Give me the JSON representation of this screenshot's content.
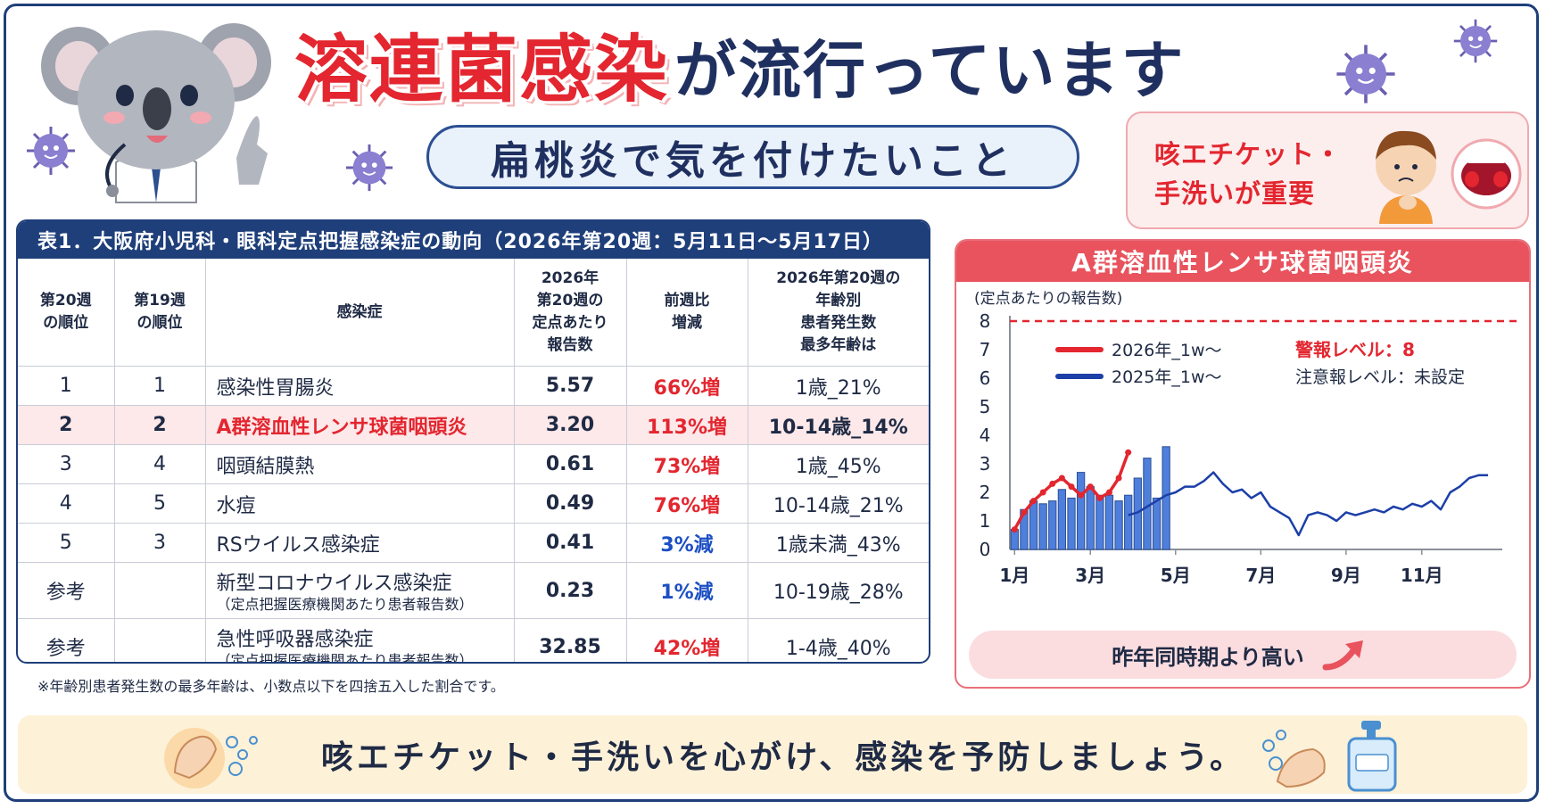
{
  "header": {
    "title_red": "溶連菌感染",
    "title_rest": "が流行っています",
    "subtitle": "扁桃炎で気を付けたいこと"
  },
  "etiquette": {
    "line1": "咳エチケット・",
    "line2": "手洗いが重要"
  },
  "table": {
    "title": "表1．大阪府小児科・眼科定点把握感染症の動向（2026年第20週：5月11日〜5月17日）",
    "headers": {
      "rank20_1": "第20週",
      "rank20_2": "の順位",
      "rank19_1": "第19週",
      "rank19_2": "の順位",
      "disease": "感染症",
      "rate_1": "2026年",
      "rate_2": "第20週の",
      "rate_3": "定点あたり",
      "rate_4": "報告数",
      "change_1": "前週比",
      "change_2": "増減",
      "age_1": "2026年第20週の",
      "age_2": "年齢別",
      "age_3": "患者発生数",
      "age_4": "最多年齢は"
    },
    "rows": [
      {
        "r20": "1",
        "r19": "1",
        "name": "感染性胃腸炎",
        "rate": "5.57",
        "change": "66%増",
        "age": "1歳_21%"
      },
      {
        "r20": "2",
        "r19": "2",
        "name": "A群溶血性レンサ球菌咽頭炎",
        "rate": "3.20",
        "change": "113%増",
        "age": "10-14歳_14%"
      },
      {
        "r20": "3",
        "r19": "4",
        "name": "咽頭結膜熱",
        "rate": "0.61",
        "change": "73%増",
        "age": "1歳_45%"
      },
      {
        "r20": "4",
        "r19": "5",
        "name": "水痘",
        "rate": "0.49",
        "change": "76%増",
        "age": "10-14歳_21%"
      },
      {
        "r20": "5",
        "r19": "3",
        "name": "RSウイルス感染症",
        "rate": "0.41",
        "change": "3%減",
        "age": "1歳未満_43%"
      },
      {
        "r20": "参考",
        "r19": "",
        "name": "新型コロナウイルス感染症",
        "sub": "（定点把握医療機関あたり患者報告数）",
        "rate": "0.23",
        "change": "1%減",
        "age": "10-19歳_28%"
      },
      {
        "r20": "参考",
        "r19": "",
        "name": "急性呼吸器感染症",
        "sub": "（定点把握医療機関あたり患者報告数）",
        "rate": "32.85",
        "change": "42%増",
        "age": "1-4歳_40%"
      }
    ],
    "note": "※年齢別患者発生数の最多年齢は、小数点以下を四捨五入した割合です。"
  },
  "chart_panel": {
    "title": "A群溶血性レンサ球菌咽頭炎",
    "trend_text": "昨年同時期より高い"
  },
  "chart_data": {
    "type": "line",
    "ylabel": "(定点あたりの報告数)",
    "ylim": [
      0,
      8
    ],
    "yticks": [
      "0",
      "1",
      "2",
      "3",
      "4",
      "5",
      "6",
      "7",
      "8"
    ],
    "xtick_labels": [
      "1月",
      "3月",
      "5月",
      "7月",
      "9月",
      "11月"
    ],
    "xtick_weeks": [
      1,
      9,
      18,
      27,
      36,
      44
    ],
    "alert_level_label": "警報レベル：8",
    "alert_level": 8,
    "caution_level_label": "注意報レベル：未設定",
    "series": [
      {
        "name": "2026年_1w〜",
        "color": "#e3262f",
        "week_start": 1,
        "values": [
          0.7,
          1.3,
          1.7,
          2.0,
          2.3,
          2.5,
          2.2,
          1.9,
          2.2,
          1.8,
          2.0,
          2.5,
          3.4
        ]
      },
      {
        "name": "2025年_1w〜",
        "color": "#1c3fa8",
        "week_start": 13,
        "values": [
          1.2,
          1.3,
          1.5,
          1.7,
          1.9,
          2.0,
          2.2,
          2.2,
          2.4,
          2.7,
          2.3,
          2.0,
          2.1,
          1.8,
          2.0,
          1.5,
          1.3,
          1.1,
          0.5,
          1.2,
          1.3,
          1.2,
          1.0,
          1.3,
          1.2,
          1.3,
          1.4,
          1.3,
          1.5,
          1.4,
          1.6,
          1.5,
          1.7,
          1.4,
          2.0,
          2.2,
          2.5,
          2.6,
          2.6
        ]
      }
    ],
    "bars": {
      "name": "2026年 週別報告数",
      "week_start": 1,
      "values": [
        0.7,
        1.4,
        1.7,
        1.6,
        1.7,
        2.1,
        1.8,
        2.7,
        2.2,
        1.9,
        1.9,
        1.7,
        1.9,
        2.5,
        3.2,
        1.8,
        3.6
      ]
    }
  },
  "footer": {
    "text": "咳エチケット・手洗いを心がけ、感染を予防しましょう。"
  }
}
